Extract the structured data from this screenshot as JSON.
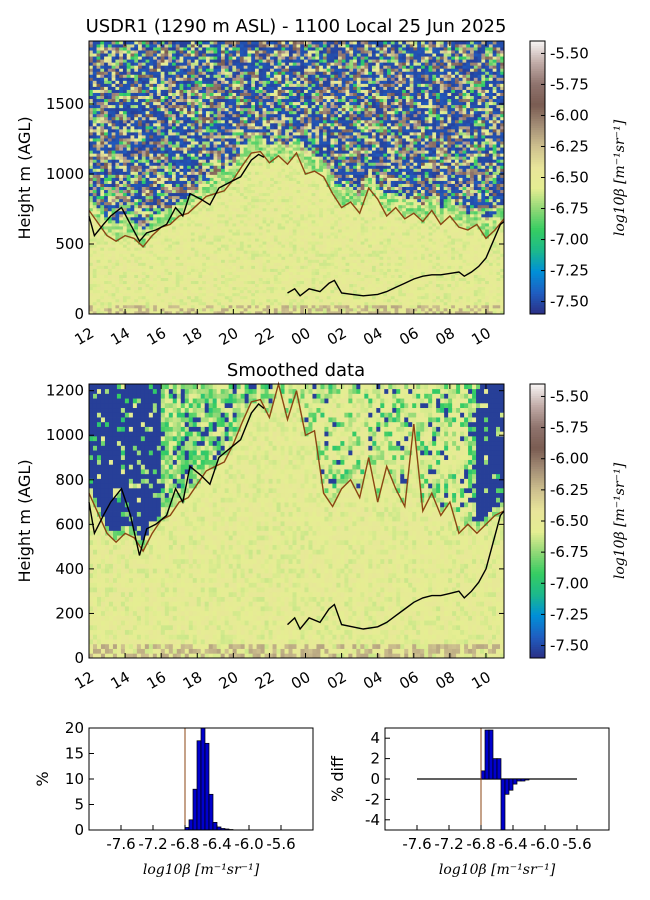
{
  "colors": {
    "colormap": [
      "#2b3187",
      "#1f5fc2",
      "#0090d8",
      "#1cb98b",
      "#36cd62",
      "#8fd876",
      "#e5ee92",
      "#e8e59a",
      "#cdc08e",
      "#a48e76",
      "#7a5c52",
      "#8f736d",
      "#c0aaa6",
      "#f5f1f0"
    ],
    "bl_line": "#8b4513",
    "low_line": "#000000",
    "bar_fill": "#0000cc",
    "vline": "#8b4513"
  },
  "chart_data": [
    {
      "id": "raw",
      "type": "heatmap",
      "title": "USDR1 (1290 m ASL) - 1100 Local 25 Jun 2025",
      "ylabel": "Height m (AGL)",
      "xticks": [
        "12",
        "14",
        "16",
        "18",
        "20",
        "22",
        "00",
        "02",
        "04",
        "06",
        "08",
        "10"
      ],
      "yticks": [
        "0",
        "500",
        "1000",
        "1500"
      ],
      "ytick_values": [
        0,
        500,
        1000,
        1500
      ],
      "ylim": [
        0,
        1950
      ],
      "xlim_hours": [
        0,
        23
      ],
      "colorbar_label": "log10β [m⁻¹sr⁻¹]",
      "colorbar_ticks": [
        "-5.50",
        "-5.75",
        "-6.00",
        "-6.25",
        "-6.50",
        "-6.75",
        "-7.00",
        "-7.25",
        "-7.50"
      ],
      "colorbar_tick_values": [
        -5.5,
        -5.75,
        -6.0,
        -6.25,
        -6.5,
        -6.75,
        -7.0,
        -7.25,
        -7.5
      ],
      "clim": [
        -7.6,
        -5.4
      ],
      "boundary_layer_top": [
        [
          0,
          740
        ],
        [
          0.5,
          650
        ],
        [
          1.0,
          560
        ],
        [
          1.5,
          520
        ],
        [
          2.0,
          560
        ],
        [
          2.5,
          540
        ],
        [
          3.0,
          480
        ],
        [
          3.5,
          560
        ],
        [
          4.0,
          620
        ],
        [
          4.5,
          640
        ],
        [
          5.0,
          700
        ],
        [
          5.5,
          720
        ],
        [
          6.0,
          780
        ],
        [
          6.5,
          840
        ],
        [
          7.0,
          860
        ],
        [
          7.5,
          880
        ],
        [
          8.0,
          960
        ],
        [
          8.5,
          1060
        ],
        [
          9.0,
          1150
        ],
        [
          9.5,
          1160
        ],
        [
          10.0,
          1080
        ],
        [
          10.5,
          1130
        ],
        [
          11.0,
          1070
        ],
        [
          11.5,
          1150
        ],
        [
          12.0,
          1000
        ],
        [
          12.5,
          1020
        ],
        [
          13.0,
          980
        ],
        [
          13.5,
          860
        ],
        [
          14.0,
          760
        ],
        [
          14.5,
          800
        ],
        [
          15.0,
          720
        ],
        [
          15.5,
          900
        ],
        [
          16.0,
          820
        ],
        [
          16.5,
          700
        ],
        [
          17.0,
          760
        ],
        [
          17.5,
          680
        ],
        [
          18.0,
          720
        ],
        [
          18.5,
          660
        ],
        [
          19.0,
          740
        ],
        [
          19.5,
          640
        ],
        [
          20.0,
          700
        ],
        [
          20.5,
          620
        ],
        [
          21.0,
          600
        ],
        [
          21.5,
          640
        ],
        [
          22.0,
          540
        ],
        [
          22.5,
          600
        ],
        [
          23.0,
          680
        ]
      ],
      "low_layer": [
        [
          0,
          700
        ],
        [
          0.3,
          560
        ],
        [
          0.8,
          640
        ],
        [
          1.2,
          700
        ],
        [
          1.8,
          760
        ],
        [
          2.3,
          640
        ],
        [
          2.8,
          520
        ],
        [
          3.2,
          580
        ],
        [
          3.7,
          600
        ],
        [
          4.3,
          640
        ],
        [
          4.8,
          760
        ],
        [
          5.2,
          700
        ],
        [
          5.6,
          860
        ],
        [
          6.2,
          820
        ],
        [
          6.7,
          780
        ],
        [
          7.2,
          900
        ],
        [
          7.8,
          940
        ],
        [
          8.4,
          980
        ],
        [
          9.0,
          1100
        ],
        [
          9.4,
          1140
        ],
        [
          9.7,
          1120
        ],
        [
          11.0,
          null
        ],
        [
          11.0,
          150
        ],
        [
          11.4,
          180
        ],
        [
          11.7,
          130
        ],
        [
          12.2,
          180
        ],
        [
          12.8,
          160
        ],
        [
          13.3,
          220
        ],
        [
          13.6,
          240
        ],
        [
          14.0,
          150
        ],
        [
          14.6,
          140
        ],
        [
          15.2,
          130
        ],
        [
          16.0,
          140
        ],
        [
          16.5,
          160
        ],
        [
          17.0,
          190
        ],
        [
          17.5,
          220
        ],
        [
          18.0,
          250
        ],
        [
          18.5,
          270
        ],
        [
          19.0,
          280
        ],
        [
          19.5,
          280
        ],
        [
          20.0,
          290
        ],
        [
          20.5,
          300
        ],
        [
          20.8,
          270
        ],
        [
          21.2,
          300
        ],
        [
          21.6,
          340
        ],
        [
          22.0,
          400
        ],
        [
          22.4,
          520
        ],
        [
          22.8,
          640
        ],
        [
          23.0,
          660
        ]
      ]
    },
    {
      "id": "smooth",
      "type": "heatmap",
      "title": "Smoothed data",
      "ylabel": "Height m (AGL)",
      "xticks": [
        "12",
        "14",
        "16",
        "18",
        "20",
        "22",
        "00",
        "02",
        "04",
        "06",
        "08",
        "10"
      ],
      "yticks": [
        "0",
        "200",
        "400",
        "600",
        "800",
        "1000",
        "1200"
      ],
      "ytick_values": [
        0,
        200,
        400,
        600,
        800,
        1000,
        1200
      ],
      "ylim": [
        0,
        1230
      ],
      "xlim_hours": [
        0,
        23
      ],
      "colorbar_label": "log10β [m⁻¹sr⁻¹]",
      "colorbar_ticks": [
        "-5.50",
        "-5.75",
        "-6.00",
        "-6.25",
        "-6.50",
        "-6.75",
        "-7.00",
        "-7.25",
        "-7.50"
      ],
      "colorbar_tick_values": [
        -5.5,
        -5.75,
        -6.0,
        -6.25,
        -6.5,
        -6.75,
        -7.0,
        -7.25,
        -7.5
      ],
      "clim": [
        -7.6,
        -5.4
      ],
      "boundary_layer_top": [
        [
          0,
          740
        ],
        [
          0.5,
          650
        ],
        [
          1.0,
          560
        ],
        [
          1.5,
          520
        ],
        [
          2.0,
          560
        ],
        [
          2.5,
          540
        ],
        [
          3.0,
          480
        ],
        [
          3.5,
          560
        ],
        [
          4.0,
          620
        ],
        [
          4.5,
          640
        ],
        [
          5.0,
          700
        ],
        [
          5.5,
          720
        ],
        [
          6.0,
          780
        ],
        [
          6.5,
          840
        ],
        [
          7.0,
          860
        ],
        [
          7.5,
          880
        ],
        [
          8.0,
          960
        ],
        [
          8.5,
          1060
        ],
        [
          9.0,
          1150
        ],
        [
          9.5,
          1160
        ],
        [
          10.0,
          1080
        ],
        [
          10.5,
          1230
        ],
        [
          11.0,
          1070
        ],
        [
          11.5,
          1200
        ],
        [
          12.0,
          1000
        ],
        [
          12.5,
          1020
        ],
        [
          13.0,
          740
        ],
        [
          13.5,
          680
        ],
        [
          14.0,
          760
        ],
        [
          14.5,
          800
        ],
        [
          15.0,
          720
        ],
        [
          15.5,
          900
        ],
        [
          16.0,
          700
        ],
        [
          16.5,
          860
        ],
        [
          17.0,
          760
        ],
        [
          17.5,
          680
        ],
        [
          18.0,
          1050
        ],
        [
          18.5,
          660
        ],
        [
          19.0,
          740
        ],
        [
          19.5,
          640
        ],
        [
          20.0,
          700
        ],
        [
          20.5,
          560
        ],
        [
          21.0,
          600
        ],
        [
          21.5,
          560
        ],
        [
          22.0,
          600
        ],
        [
          22.5,
          640
        ],
        [
          23.0,
          660
        ]
      ],
      "low_layer": [
        [
          0,
          700
        ],
        [
          0.3,
          560
        ],
        [
          0.8,
          640
        ],
        [
          1.2,
          700
        ],
        [
          1.8,
          760
        ],
        [
          2.3,
          640
        ],
        [
          2.8,
          460
        ],
        [
          3.2,
          580
        ],
        [
          3.7,
          600
        ],
        [
          4.3,
          640
        ],
        [
          4.8,
          760
        ],
        [
          5.2,
          700
        ],
        [
          5.6,
          860
        ],
        [
          6.2,
          820
        ],
        [
          6.7,
          780
        ],
        [
          7.2,
          900
        ],
        [
          7.8,
          940
        ],
        [
          8.4,
          980
        ],
        [
          9.0,
          1100
        ],
        [
          9.4,
          1140
        ],
        [
          9.7,
          1120
        ],
        [
          11.0,
          null
        ],
        [
          11.0,
          150
        ],
        [
          11.4,
          180
        ],
        [
          11.7,
          130
        ],
        [
          12.2,
          180
        ],
        [
          12.8,
          160
        ],
        [
          13.3,
          220
        ],
        [
          13.6,
          240
        ],
        [
          14.0,
          150
        ],
        [
          14.6,
          140
        ],
        [
          15.2,
          130
        ],
        [
          16.0,
          140
        ],
        [
          16.5,
          160
        ],
        [
          17.0,
          190
        ],
        [
          17.5,
          220
        ],
        [
          18.0,
          250
        ],
        [
          18.5,
          270
        ],
        [
          19.0,
          280
        ],
        [
          19.5,
          280
        ],
        [
          20.0,
          290
        ],
        [
          20.5,
          300
        ],
        [
          20.8,
          270
        ],
        [
          21.2,
          300
        ],
        [
          21.6,
          340
        ],
        [
          22.0,
          400
        ],
        [
          22.4,
          520
        ],
        [
          22.8,
          640
        ],
        [
          23.0,
          660
        ]
      ]
    },
    {
      "id": "hist",
      "type": "bar",
      "ylabel": "%",
      "xlabel": "log10β [m⁻¹sr⁻¹]",
      "xticks": [
        "-7.6",
        "-7.2",
        "-6.8",
        "-6.4",
        "-6.0",
        "-5.6"
      ],
      "xtick_values": [
        -7.6,
        -7.2,
        -6.8,
        -6.4,
        -6.0,
        -5.6
      ],
      "xlim": [
        -8.0,
        -5.2
      ],
      "yticks": [
        "0",
        "5",
        "10",
        "15",
        "20"
      ],
      "ytick_values": [
        0,
        5,
        10,
        15,
        20
      ],
      "ylim": [
        0,
        20
      ],
      "bin_width": 0.05,
      "bins": [
        [
          -6.8,
          0.5
        ],
        [
          -6.75,
          2.0
        ],
        [
          -6.7,
          8.0
        ],
        [
          -6.65,
          17.5
        ],
        [
          -6.6,
          20.0
        ],
        [
          -6.55,
          17.0
        ],
        [
          -6.5,
          7.0
        ],
        [
          -6.45,
          1.5
        ],
        [
          -6.4,
          0.6
        ],
        [
          -6.35,
          0.3
        ],
        [
          -6.3,
          0.2
        ],
        [
          -6.25,
          0.1
        ]
      ],
      "vline": -6.8
    },
    {
      "id": "diff",
      "type": "bar",
      "ylabel": "% diff",
      "xlabel": "log10β [m⁻¹sr⁻¹]",
      "xticks": [
        "-7.6",
        "-7.2",
        "-6.8",
        "-6.4",
        "-6.0",
        "-5.6"
      ],
      "xtick_values": [
        -7.6,
        -7.2,
        -6.8,
        -6.4,
        -6.0,
        -5.6
      ],
      "xlim": [
        -8.0,
        -5.2
      ],
      "yticks": [
        "4",
        "2",
        "0",
        "-2",
        "-4"
      ],
      "ytick_values": [
        4,
        2,
        0,
        -2,
        -4
      ],
      "ylim": [
        -5,
        5
      ],
      "bin_width": 0.05,
      "bins": [
        [
          -6.8,
          0.8
        ],
        [
          -6.75,
          4.8
        ],
        [
          -6.7,
          4.8
        ],
        [
          -6.65,
          2.0
        ],
        [
          -6.6,
          2.0
        ],
        [
          -6.55,
          -5.0
        ],
        [
          -6.5,
          -1.5
        ],
        [
          -6.45,
          -1.1
        ],
        [
          -6.4,
          -0.5
        ],
        [
          -6.35,
          -0.2
        ],
        [
          -6.3,
          -0.2
        ],
        [
          -6.25,
          -0.1
        ]
      ],
      "baseline_range": [
        -7.6,
        -5.6
      ],
      "vline": -6.8
    }
  ]
}
